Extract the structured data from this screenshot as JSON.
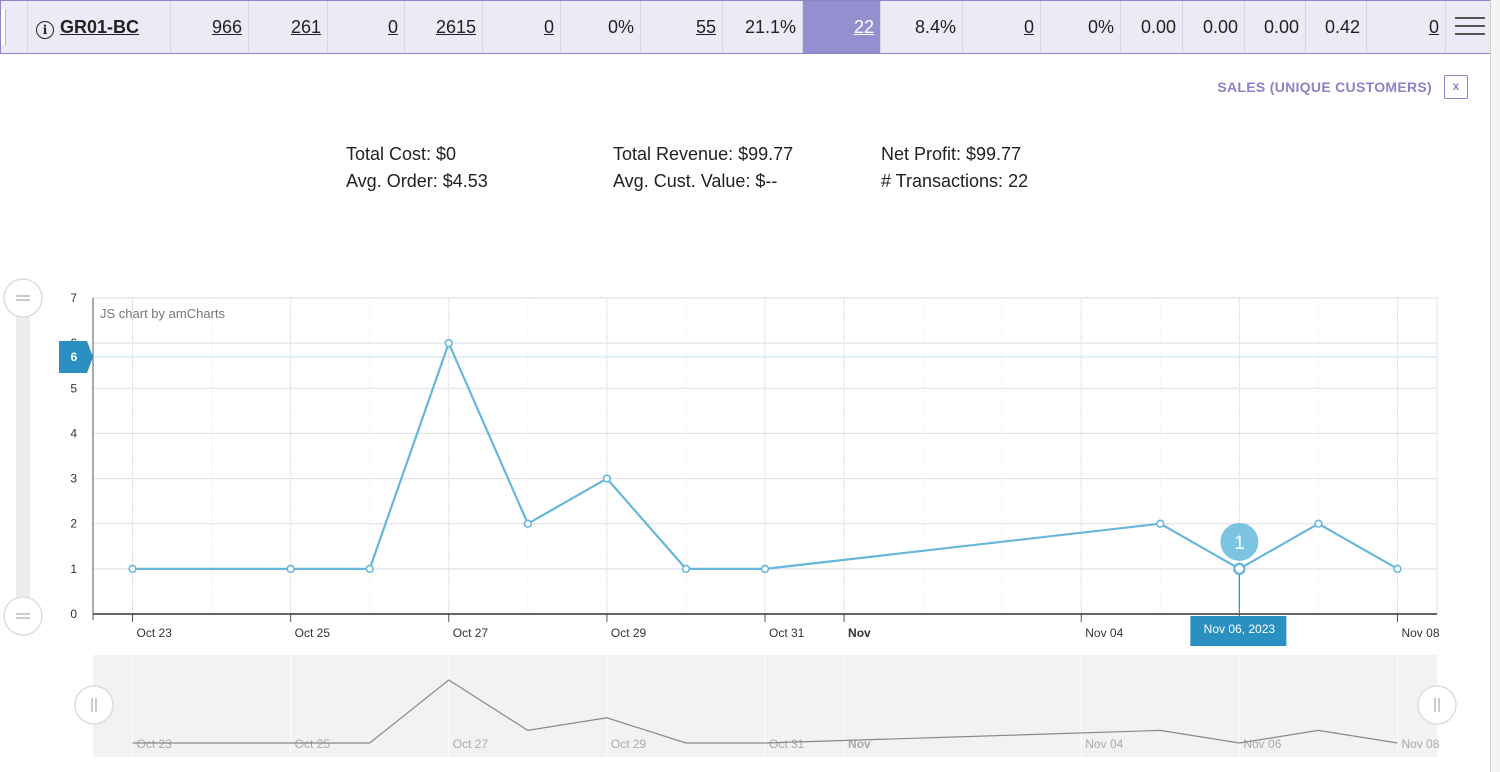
{
  "stats_row": {
    "name": "GR01-BC",
    "cells": [
      "966",
      "261",
      "0",
      "2615",
      "0",
      "0%",
      "55",
      "21.1%",
      "22",
      "8.4%",
      "0",
      "0%",
      "0.00",
      "0.00",
      "0.00",
      "0.42",
      "0"
    ]
  },
  "panel": {
    "metric_title": "SALES (UNIQUE CUSTOMERS)",
    "close_label": "x"
  },
  "summary": {
    "total_cost": "Total Cost: $0",
    "avg_order": "Avg. Order: $4.53",
    "total_revenue": "Total Revenue: $99.77",
    "avg_cust_value": "Avg. Cust. Value: $--",
    "net_profit": "Net Profit: $99.77",
    "transactions": "# Transactions: 22"
  },
  "chart_data": {
    "type": "line",
    "credit": "JS chart by amCharts",
    "x": [
      "2023-10-23",
      "2023-10-25",
      "2023-10-26",
      "2023-10-27",
      "2023-10-28",
      "2023-10-29",
      "2023-10-30",
      "2023-10-31",
      "2023-11-05",
      "2023-11-06",
      "2023-11-07",
      "2023-11-08"
    ],
    "values": [
      1,
      1,
      1,
      6,
      2,
      3,
      1,
      1,
      2,
      1,
      2,
      1
    ],
    "ylim": [
      0,
      7
    ],
    "yticks": [
      0,
      1,
      2,
      3,
      4,
      5,
      6,
      7
    ],
    "xlim": [
      "2023-10-22T12:00",
      "2023-11-08T12:00"
    ],
    "xtick_labels": [
      {
        "date": "2023-10-23",
        "label": "Oct 23",
        "bold": false
      },
      {
        "date": "2023-10-25",
        "label": "Oct 25",
        "bold": false
      },
      {
        "date": "2023-10-27",
        "label": "Oct 27",
        "bold": false
      },
      {
        "date": "2023-10-29",
        "label": "Oct 29",
        "bold": false
      },
      {
        "date": "2023-10-31",
        "label": "Oct 31",
        "bold": false
      },
      {
        "date": "2023-11-01",
        "label": "Nov",
        "bold": true
      },
      {
        "date": "2023-11-04",
        "label": "Nov 04",
        "bold": false
      },
      {
        "date": "2023-11-06",
        "label": "Nov 06",
        "bold": false
      },
      {
        "date": "2023-11-08",
        "label": "Nov 08",
        "bold": false
      }
    ],
    "cursor": {
      "date_label": "Nov 06, 2023",
      "value_bubble": "1",
      "y_marker": "6"
    },
    "grid": true,
    "line_color": "#67b7dc",
    "highlight_color": "#2a8fc1"
  }
}
